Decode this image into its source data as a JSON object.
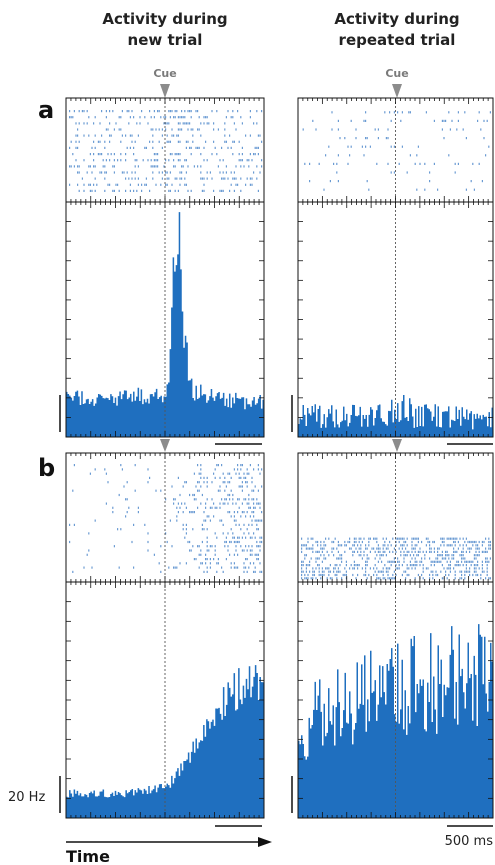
{
  "headers": {
    "left": [
      "Activity during",
      "new trial"
    ],
    "right": [
      "Activity during",
      "repeated trial"
    ]
  },
  "cue_label": "Cue",
  "panel_labels": [
    "a",
    "b"
  ],
  "scale_bars": {
    "rate": "20 Hz",
    "time": "500 ms"
  },
  "time_axis_label": "Time",
  "colors": {
    "spike": "#6a9bd3",
    "psth": "#1f6fbf",
    "cue_marker": "#8c8c8c"
  },
  "chart_data": [
    {
      "id": "a-new",
      "type": "area",
      "panel": "a",
      "column": "new trial",
      "raster_rows": 14,
      "raster_density": "moderate, slight increase after cue",
      "x": [
        -1000,
        -800,
        -600,
        -400,
        -200,
        0,
        50,
        100,
        150,
        200,
        250,
        300,
        400,
        600,
        800,
        1000
      ],
      "y": [
        11,
        11,
        11,
        11,
        12,
        13,
        20,
        58,
        52,
        28,
        16,
        13,
        12,
        11,
        10,
        10
      ],
      "xlim": [
        -1000,
        1000
      ],
      "ylim": [
        0,
        65
      ],
      "cue_time": 0
    },
    {
      "id": "a-repeated",
      "type": "area",
      "panel": "a",
      "column": "repeated trial",
      "raster_rows": 10,
      "raster_density": "sparse",
      "x": [
        -1000,
        -800,
        -600,
        -400,
        -200,
        0,
        100,
        200,
        400,
        600,
        800,
        1000
      ],
      "y": [
        6,
        6,
        6,
        6,
        6,
        7,
        9,
        6,
        6,
        6,
        5,
        6
      ],
      "xlim": [
        -1000,
        1000
      ],
      "ylim": [
        0,
        65
      ],
      "cue_time": 0
    },
    {
      "id": "b-new",
      "type": "area",
      "panel": "b",
      "column": "new trial",
      "raster_rows": 26,
      "raster_density": "sparse before cue, dense after cue",
      "x": [
        -1000,
        -800,
        -600,
        -400,
        -200,
        0,
        100,
        200,
        300,
        400,
        500,
        600,
        700,
        800,
        900,
        1000
      ],
      "y": [
        7,
        7,
        7,
        7,
        8,
        9,
        11,
        15,
        20,
        25,
        29,
        33,
        36,
        38,
        39,
        40
      ],
      "xlim": [
        -1000,
        1000
      ],
      "ylim": [
        0,
        65
      ],
      "cue_time": 0
    },
    {
      "id": "b-repeated",
      "type": "area",
      "panel": "b",
      "column": "repeated trial",
      "raster_rows": 13,
      "raster_density": "very dense, uniform",
      "x": [
        -1000,
        -800,
        -600,
        -400,
        -200,
        0,
        200,
        400,
        600,
        800,
        900,
        1000
      ],
      "y": [
        22,
        30,
        33,
        34,
        36,
        38,
        38,
        39,
        41,
        42,
        43,
        48
      ],
      "xlim": [
        -1000,
        1000
      ],
      "ylim": [
        0,
        65
      ],
      "cue_time": 0
    }
  ]
}
